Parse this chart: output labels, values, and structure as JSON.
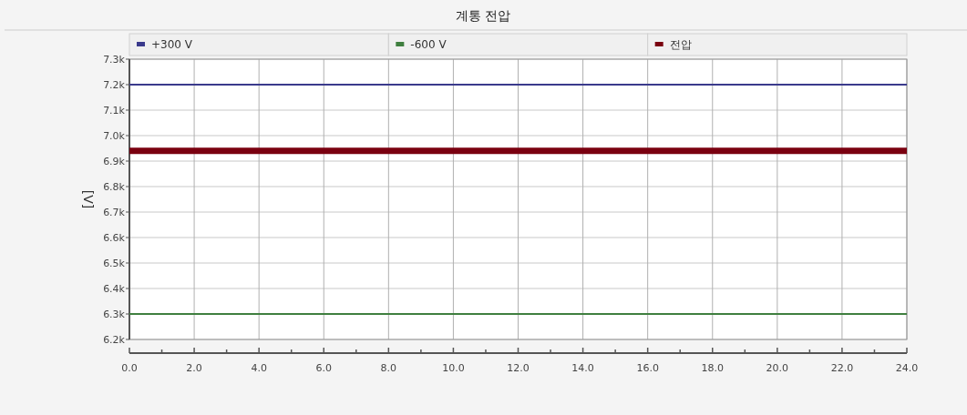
{
  "chart_data": {
    "type": "line",
    "title": "계통 전압",
    "ylabel": "[V]",
    "x": [
      0,
      24
    ],
    "series": [
      {
        "name": "+300 V",
        "color": "#3a3a8c",
        "values": [
          7200,
          7200
        ]
      },
      {
        "name": "-600 V",
        "color": "#3f7f3f",
        "values": [
          6300,
          6300
        ]
      },
      {
        "name": "전압",
        "color": "#7a0010",
        "values": [
          6940,
          6940
        ]
      }
    ],
    "xlim": [
      0,
      24
    ],
    "xticks": [
      {
        "value": 0,
        "label": "0.0"
      },
      {
        "value": 1,
        "label": null
      },
      {
        "value": 2,
        "label": "2.0"
      },
      {
        "value": 3,
        "label": null
      },
      {
        "value": 4,
        "label": "4.0"
      },
      {
        "value": 5,
        "label": null
      },
      {
        "value": 6,
        "label": "6.0"
      },
      {
        "value": 7,
        "label": null
      },
      {
        "value": 8,
        "label": "8.0"
      },
      {
        "value": 9,
        "label": null
      },
      {
        "value": 10,
        "label": "10.0"
      },
      {
        "value": 11,
        "label": null
      },
      {
        "value": 12,
        "label": "12.0"
      },
      {
        "value": 13,
        "label": null
      },
      {
        "value": 14,
        "label": "14.0"
      },
      {
        "value": 15,
        "label": null
      },
      {
        "value": 16,
        "label": "16.0"
      },
      {
        "value": 17,
        "label": null
      },
      {
        "value": 18,
        "label": "18.0"
      },
      {
        "value": 19,
        "label": null
      },
      {
        "value": 20,
        "label": "20.0"
      },
      {
        "value": 21,
        "label": null
      },
      {
        "value": 22,
        "label": "22.0"
      },
      {
        "value": 23,
        "label": null
      },
      {
        "value": 24,
        "label": "24.0"
      }
    ],
    "ylim": [
      6200,
      7300
    ],
    "yticks": [
      {
        "value": 6200,
        "label": "6.2k"
      },
      {
        "value": 6300,
        "label": "6.3k"
      },
      {
        "value": 6400,
        "label": "6.4k"
      },
      {
        "value": 6500,
        "label": "6.5k"
      },
      {
        "value": 6600,
        "label": "6.6k"
      },
      {
        "value": 6700,
        "label": "6.7k"
      },
      {
        "value": 6800,
        "label": "6.8k"
      },
      {
        "value": 6900,
        "label": "6.9k"
      },
      {
        "value": 7000,
        "label": "7.0k"
      },
      {
        "value": 7100,
        "label": "7.1k"
      },
      {
        "value": 7200,
        "label": "7.2k"
      },
      {
        "value": 7300,
        "label": "7.3k"
      }
    ],
    "grid": true,
    "legend": "top",
    "marker": "none",
    "line_style": "solid"
  }
}
